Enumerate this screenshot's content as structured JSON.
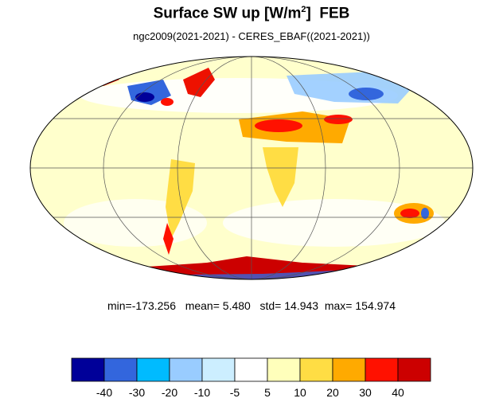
{
  "title": {
    "main": "Surface SW up [W/m",
    "sup": "2",
    "close": "]",
    "month": "FEB"
  },
  "subtitle": "ngc2009(2021-2021) - CERES_EBAF((2021-2021))",
  "stats": {
    "min_label": "min=",
    "min": "-173.256",
    "mean_label": "mean=",
    "mean": "5.480",
    "std_label": "std=",
    "std": "14.943",
    "max_label": "max=",
    "max": "154.974"
  },
  "colorbar": {
    "colors": [
      "#000099",
      "#3366dd",
      "#00bbff",
      "#99ccff",
      "#cceeff",
      "#ffffff",
      "#ffffbb",
      "#ffdd44",
      "#ffaa00",
      "#ff1100",
      "#cc0000"
    ],
    "tick_labels": [
      "-40",
      "-30",
      "-20",
      "-10",
      "-5",
      "5",
      "10",
      "20",
      "30",
      "40"
    ]
  },
  "map": {
    "projection": "mollweide",
    "base_color": "#ffffcc"
  }
}
